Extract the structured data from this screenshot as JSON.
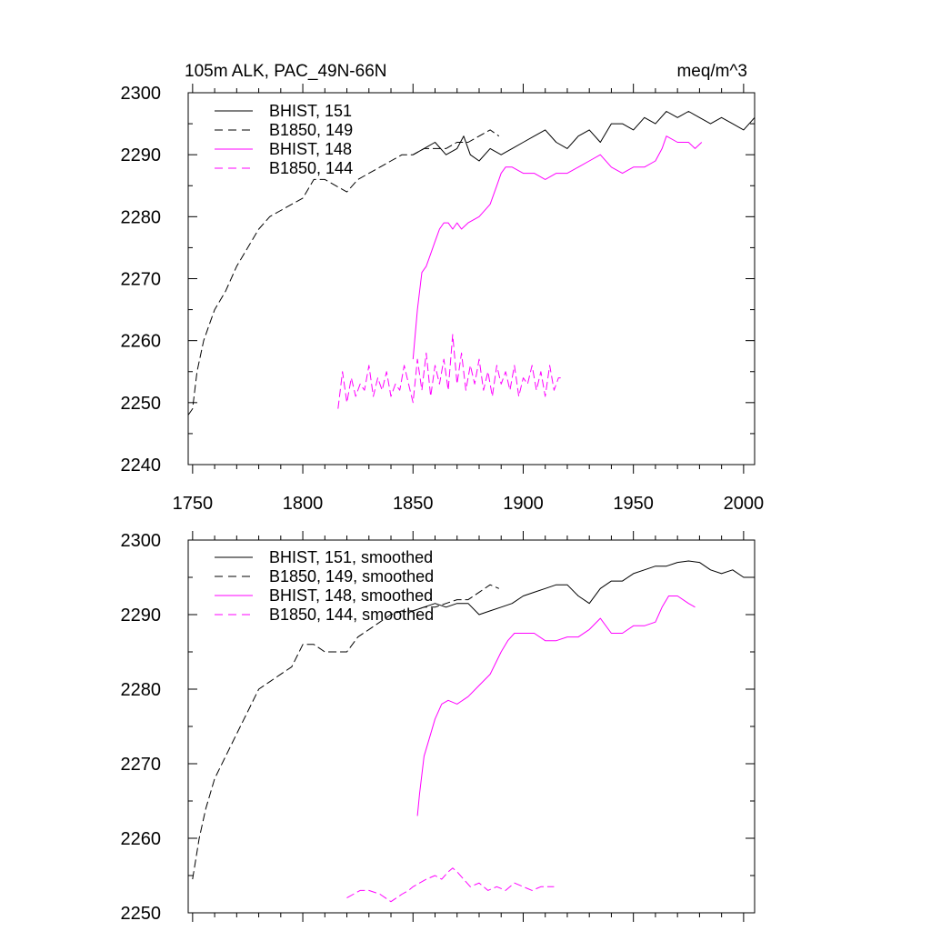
{
  "colors": {
    "black": "#000000",
    "magenta": "#ff00ff"
  },
  "chart_data": [
    {
      "type": "line",
      "title": "105m ALK, PAC_49N-66N",
      "units": "meq/m^3",
      "xlim": [
        1748,
        2005
      ],
      "ylim": [
        2240,
        2300
      ],
      "xticks": [
        1750,
        1800,
        1850,
        1900,
        1950,
        2000
      ],
      "xticklabels": [
        "1750",
        "1800",
        "1850",
        "1900",
        "1950",
        "2000"
      ],
      "yticks": [
        2240,
        2250,
        2260,
        2270,
        2280,
        2290,
        2300
      ],
      "yticklabels": [
        "2240",
        "2250",
        "2260",
        "2270",
        "2280",
        "2290",
        "2300"
      ],
      "legend": [
        "BHIST, 151",
        "B1850, 149",
        "BHIST, 148",
        "B1850, 144"
      ],
      "series": [
        {
          "name": "BHIST, 151",
          "color": "black",
          "dash": "solid",
          "x": [
            1850,
            1855,
            1860,
            1865,
            1870,
            1873,
            1876,
            1880,
            1885,
            1890,
            1895,
            1900,
            1905,
            1910,
            1915,
            1920,
            1925,
            1930,
            1935,
            1940,
            1945,
            1950,
            1955,
            1960,
            1965,
            1970,
            1975,
            1980,
            1985,
            1990,
            1995,
            2000,
            2005
          ],
          "y": [
            2290,
            2291,
            2292,
            2290,
            2291,
            2293,
            2290,
            2289,
            2291,
            2290,
            2291,
            2292,
            2293,
            2294,
            2292,
            2291,
            2293,
            2294,
            2292,
            2295,
            2295,
            2294,
            2296,
            2295,
            2297,
            2296,
            2297,
            2296,
            2295,
            2296,
            2295,
            2294,
            2296
          ]
        },
        {
          "name": "B1850, 149",
          "color": "black",
          "dash": "dashed",
          "x": [
            1748,
            1750,
            1752,
            1755,
            1758,
            1760,
            1765,
            1770,
            1775,
            1780,
            1785,
            1790,
            1795,
            1800,
            1805,
            1810,
            1815,
            1820,
            1825,
            1830,
            1835,
            1840,
            1845,
            1850,
            1855,
            1860,
            1865,
            1870,
            1875,
            1880,
            1885,
            1889
          ],
          "y": [
            2248,
            2249,
            2255,
            2260,
            2263,
            2265,
            2268,
            2272,
            2275,
            2278,
            2280,
            2281,
            2282,
            2283,
            2286,
            2286,
            2285,
            2284,
            2286,
            2287,
            2288,
            2289,
            2290,
            2290,
            2291,
            2291,
            2291,
            2292,
            2292,
            2293,
            2294,
            2293
          ]
        },
        {
          "name": "BHIST, 148",
          "color": "magenta",
          "dash": "solid",
          "x": [
            1850,
            1852,
            1854,
            1856,
            1858,
            1860,
            1862,
            1864,
            1866,
            1868,
            1870,
            1872,
            1875,
            1880,
            1885,
            1888,
            1890,
            1892,
            1895,
            1900,
            1905,
            1910,
            1915,
            1920,
            1925,
            1930,
            1935,
            1940,
            1945,
            1950,
            1955,
            1960,
            1963,
            1965,
            1970,
            1975,
            1978,
            1981
          ],
          "y": [
            2257,
            2265,
            2271,
            2272,
            2274,
            2276,
            2278,
            2279,
            2279,
            2278,
            2279,
            2278,
            2279,
            2280,
            2282,
            2285,
            2287,
            2288,
            2288,
            2287,
            2287,
            2286,
            2287,
            2287,
            2288,
            2289,
            2290,
            2288,
            2287,
            2288,
            2288,
            2289,
            2291,
            2293,
            2292,
            2292,
            2291,
            2292
          ]
        },
        {
          "name": "B1850, 144",
          "color": "magenta",
          "dash": "dashed",
          "x": [
            1816,
            1818,
            1820,
            1822,
            1824,
            1826,
            1828,
            1830,
            1832,
            1834,
            1836,
            1838,
            1840,
            1842,
            1844,
            1846,
            1848,
            1850,
            1852,
            1854,
            1856,
            1858,
            1860,
            1862,
            1864,
            1866,
            1868,
            1870,
            1872,
            1874,
            1876,
            1878,
            1880,
            1882,
            1884,
            1886,
            1888,
            1890,
            1892,
            1894,
            1896,
            1898,
            1900,
            1902,
            1904,
            1906,
            1908,
            1910,
            1912,
            1914,
            1916,
            1917
          ],
          "y": [
            2249,
            2255,
            2250,
            2254,
            2251,
            2253,
            2252,
            2256,
            2251,
            2254,
            2252,
            2255,
            2251,
            2253,
            2252,
            2256,
            2253,
            2250,
            2257,
            2252,
            2258,
            2251,
            2256,
            2253,
            2257,
            2252,
            2261,
            2253,
            2258,
            2252,
            2256,
            2253,
            2257,
            2252,
            2255,
            2251,
            2256,
            2253,
            2255,
            2252,
            2256,
            2251,
            2254,
            2253,
            2256,
            2252,
            2255,
            2251,
            2256,
            2252,
            2254,
            2254
          ]
        }
      ]
    },
    {
      "type": "line",
      "title": "",
      "xlim": [
        1748,
        2005
      ],
      "ylim": [
        2250,
        2300
      ],
      "xticks": [
        1750,
        1800,
        1850,
        1900,
        1950,
        2000
      ],
      "yticks": [
        2250,
        2260,
        2270,
        2280,
        2290,
        2300
      ],
      "yticklabels": [
        "2250",
        "2260",
        "2270",
        "2280",
        "2290",
        "2300"
      ],
      "legend": [
        "BHIST, 151, smoothed",
        "B1850, 149, smoothed",
        "BHIST, 148, smoothed",
        "B1850, 144, smoothed"
      ],
      "series": [
        {
          "name": "BHIST, 151, smoothed",
          "color": "black",
          "dash": "solid",
          "x": [
            1850,
            1855,
            1860,
            1865,
            1870,
            1875,
            1880,
            1885,
            1890,
            1895,
            1900,
            1905,
            1910,
            1915,
            1920,
            1925,
            1930,
            1935,
            1940,
            1945,
            1950,
            1955,
            1960,
            1965,
            1970,
            1975,
            1980,
            1985,
            1990,
            1995,
            2000,
            2003
          ],
          "y": [
            2290.5,
            2291,
            2291.5,
            2291,
            2291.5,
            2291.5,
            2290,
            2290.5,
            2291,
            2291.5,
            2292.5,
            2293,
            2293.5,
            2294,
            2294,
            2292.5,
            2291.5,
            2293.5,
            2294.5,
            2294.5,
            2295.5,
            2296,
            2296.5,
            2296.5,
            2297,
            2297.2,
            2297,
            2296,
            2295.5,
            2296,
            2295,
            2295
          ]
        },
        {
          "name": "B1850, 149, smoothed",
          "color": "black",
          "dash": "dashed",
          "x": [
            1750,
            1753,
            1756,
            1760,
            1765,
            1770,
            1775,
            1780,
            1785,
            1790,
            1795,
            1800,
            1805,
            1810,
            1815,
            1820,
            1825,
            1830,
            1835,
            1840,
            1845,
            1850,
            1855,
            1860,
            1865,
            1870,
            1875,
            1880,
            1885,
            1889
          ],
          "y": [
            2254.5,
            2260,
            2264,
            2268,
            2271,
            2274,
            2277,
            2280,
            2281,
            2282,
            2283,
            2286,
            2286,
            2285,
            2285,
            2285,
            2287,
            2288,
            2289,
            2290,
            2290.5,
            2290.5,
            2291,
            2291,
            2291.5,
            2292,
            2292,
            2293,
            2294,
            2293.5
          ]
        },
        {
          "name": "BHIST, 148, smoothed",
          "color": "magenta",
          "dash": "solid",
          "x": [
            1852,
            1853,
            1855,
            1858,
            1860,
            1863,
            1866,
            1870,
            1875,
            1880,
            1885,
            1890,
            1893,
            1896,
            1900,
            1905,
            1910,
            1915,
            1920,
            1925,
            1930,
            1935,
            1940,
            1945,
            1950,
            1955,
            1960,
            1963,
            1966,
            1970,
            1975,
            1978
          ],
          "y": [
            2263,
            2266,
            2271,
            2274,
            2276,
            2278,
            2278.5,
            2278,
            2279,
            2280.5,
            2282,
            2285,
            2286.5,
            2287.5,
            2287.5,
            2287.5,
            2286.5,
            2286.5,
            2287,
            2287,
            2288,
            2289.5,
            2287.5,
            2287.5,
            2288.5,
            2288.5,
            2289,
            2291,
            2292.5,
            2292.5,
            2291.5,
            2291
          ]
        },
        {
          "name": "B1850, 144, smoothed",
          "color": "magenta",
          "dash": "dashed",
          "x": [
            1820,
            1823,
            1826,
            1830,
            1835,
            1840,
            1845,
            1848,
            1850,
            1853,
            1856,
            1860,
            1863,
            1866,
            1868,
            1870,
            1873,
            1876,
            1880,
            1884,
            1888,
            1892,
            1896,
            1900,
            1904,
            1908,
            1912,
            1914
          ],
          "y": [
            2252,
            2252.5,
            2253,
            2253,
            2252.5,
            2251.5,
            2252.5,
            2253,
            2253.5,
            2254,
            2254.5,
            2255,
            2254.5,
            2255.5,
            2256,
            2255.5,
            2254.5,
            2253.5,
            2254,
            2253,
            2253.5,
            2253,
            2254,
            2253.5,
            2253,
            2253.5,
            2253.5,
            2253.5
          ]
        }
      ]
    }
  ]
}
